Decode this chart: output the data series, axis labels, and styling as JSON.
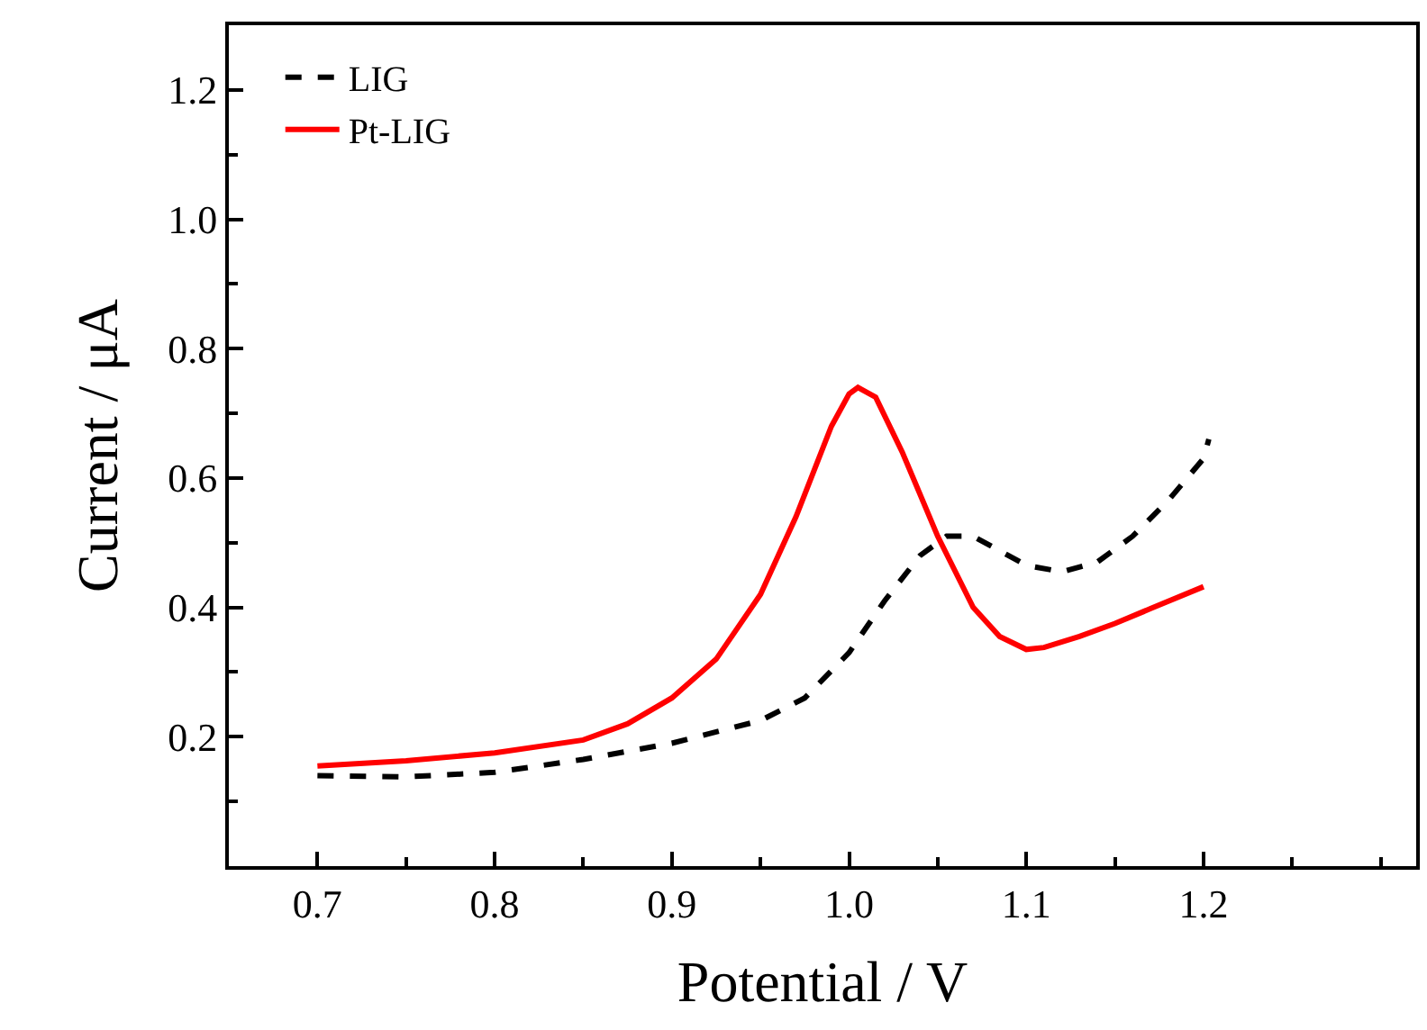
{
  "chart_data": {
    "type": "line",
    "xlabel": "Potential / V",
    "ylabel": "Current / μA",
    "xlim": [
      0.65,
      1.32
    ],
    "xticks": [
      0.7,
      0.8,
      0.9,
      {
        "value": 1,
        "label": "1.0"
      },
      1.1,
      1.2
    ],
    "ylim": [
      0,
      1.3
    ],
    "yticks": [
      0.2,
      0.4,
      0.6,
      0.8,
      {
        "value": 1,
        "label": "1.0"
      },
      1.2
    ],
    "grid": false,
    "legend": "top left",
    "marker": "none",
    "series": [
      {
        "name": "LIG",
        "color": "#000000",
        "line_style": "dashed",
        "x": [
          0.7,
          0.75,
          0.8,
          0.85,
          0.9,
          0.95,
          0.975,
          1.0,
          1.02,
          1.04,
          1.055,
          1.07,
          1.09,
          1.1,
          1.12,
          1.14,
          1.16,
          1.18,
          1.2,
          1.203
        ],
        "values": [
          0.14,
          0.138,
          0.145,
          0.165,
          0.19,
          0.225,
          0.26,
          0.33,
          0.41,
          0.48,
          0.51,
          0.51,
          0.48,
          0.465,
          0.455,
          0.47,
          0.51,
          0.565,
          0.63,
          0.66
        ]
      },
      {
        "name": "Pt-LIG",
        "color": "#ff0000",
        "line_style": "solid",
        "x": [
          0.7,
          0.75,
          0.8,
          0.85,
          0.875,
          0.9,
          0.925,
          0.95,
          0.97,
          0.99,
          1.0,
          1.005,
          1.015,
          1.03,
          1.05,
          1.07,
          1.085,
          1.1,
          1.11,
          1.13,
          1.15,
          1.17,
          1.2
        ],
        "values": [
          0.155,
          0.163,
          0.175,
          0.195,
          0.22,
          0.26,
          0.32,
          0.42,
          0.54,
          0.68,
          0.73,
          0.74,
          0.725,
          0.64,
          0.51,
          0.4,
          0.355,
          0.335,
          0.338,
          0.355,
          0.375,
          0.398,
          0.432
        ]
      }
    ]
  }
}
